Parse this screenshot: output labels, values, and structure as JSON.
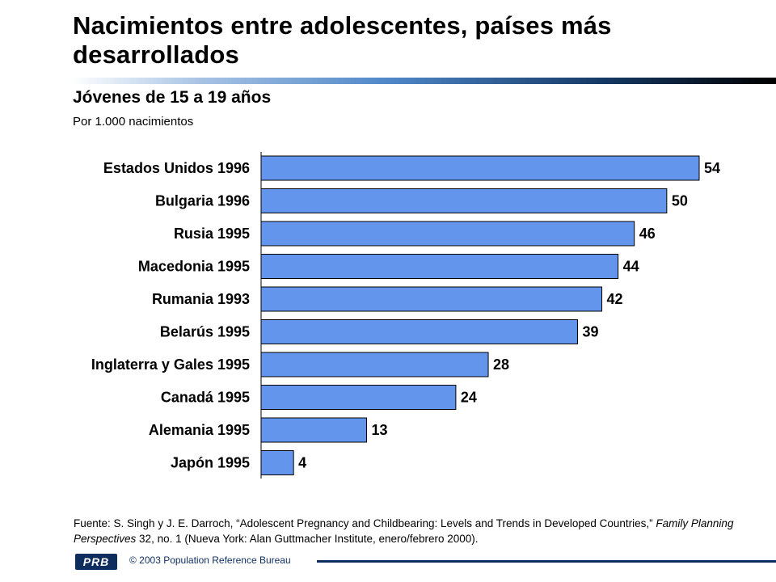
{
  "title": "Nacimientos entre adolescentes, países más desarrollados",
  "subtitle": "Jóvenes de 15 a 19 años",
  "unit_note": "Por 1.000 nacimientos",
  "source_prefix": "Fuente: S. Singh y J. E. Darroch, “Adolescent Pregnancy and Childbearing: Levels and Trends in Developed Countries,” ",
  "source_journal": "Family Planning Perspectives",
  "source_suffix": " 32, no. 1 (Nueva York: Alan Guttmacher Institute, enero/febrero 2000).",
  "logo_text": "PRB",
  "copyright": "© 2003  Population Reference Bureau",
  "colors": {
    "bar": "#6495ed",
    "bar_border": "#000000",
    "accent": "#0d2d5e"
  },
  "chart_data": {
    "type": "bar",
    "orientation": "horizontal",
    "categories": [
      "Estados Unidos 1996",
      "Bulgaria 1996",
      "Rusia 1995",
      "Macedonia 1995",
      "Rumania 1993",
      "Belarús 1995",
      "Inglaterra y Gales 1995",
      "Canadá 1995",
      "Alemania 1995",
      "Japón 1995"
    ],
    "values": [
      54,
      50,
      46,
      44,
      42,
      39,
      28,
      24,
      13,
      4
    ],
    "xlim": [
      0,
      54
    ],
    "grid": false,
    "legend": "none"
  }
}
